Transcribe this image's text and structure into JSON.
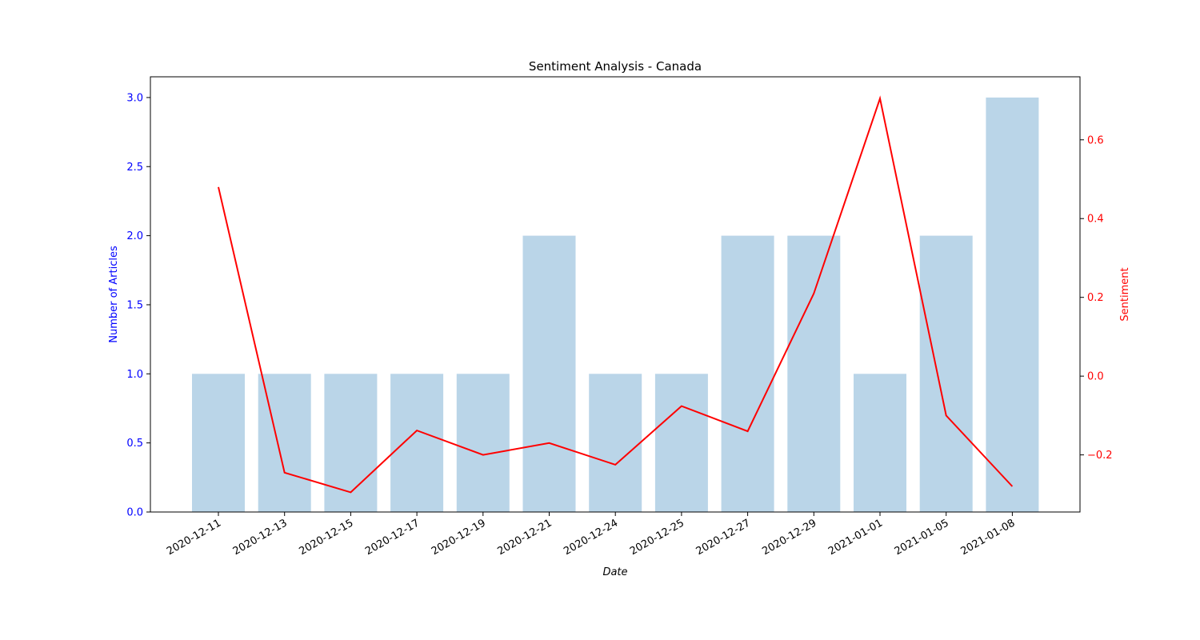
{
  "chart_data": {
    "type": "bar",
    "title": "Sentiment Analysis - Canada",
    "xlabel": "Date",
    "ylabel": "Number of Articles",
    "y2label": "Sentiment",
    "categories": [
      "2020-12-11",
      "2020-12-13",
      "2020-12-15",
      "2020-12-17",
      "2020-12-19",
      "2020-12-21",
      "2020-12-24",
      "2020-12-25",
      "2020-12-27",
      "2020-12-29",
      "2021-01-01",
      "2021-01-05",
      "2021-01-08"
    ],
    "series": [
      {
        "type": "bar",
        "axis": "left",
        "values": [
          1,
          1,
          1,
          1,
          1,
          2,
          1,
          1,
          2,
          2,
          1,
          2,
          3
        ]
      },
      {
        "type": "line",
        "axis": "right",
        "values": [
          0.48,
          -0.245,
          -0.295,
          -0.138,
          -0.2,
          -0.17,
          -0.225,
          -0.076,
          -0.14,
          0.21,
          0.705,
          -0.1,
          -0.28
        ]
      }
    ],
    "ylim": [
      0,
      3.15
    ],
    "y2lim": [
      -0.345,
      0.76
    ],
    "yticks": [
      "0.0",
      "0.5",
      "1.0",
      "1.5",
      "2.0",
      "2.5",
      "3.0"
    ],
    "y2ticks": [
      "−0.2",
      "0.0",
      "0.2",
      "0.4",
      "0.6"
    ],
    "grid": false,
    "colors": {
      "bar": "#bad5e8",
      "line": "#ff0000",
      "left_axis": "#0000ff",
      "right_axis": "#ff0000"
    }
  }
}
